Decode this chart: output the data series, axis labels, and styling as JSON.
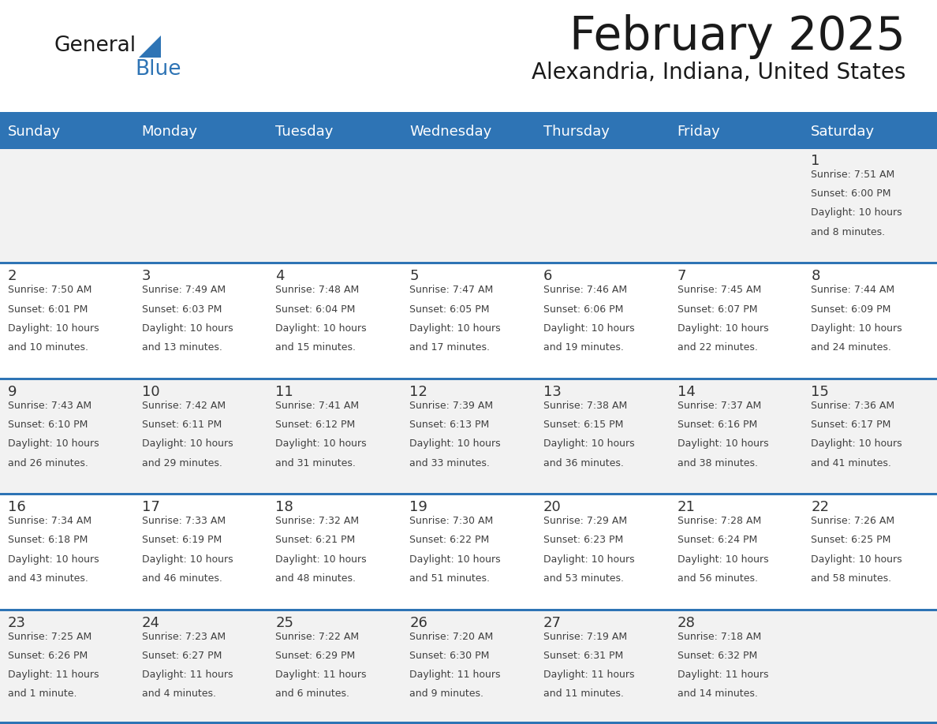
{
  "title": "February 2025",
  "subtitle": "Alexandria, Indiana, United States",
  "days_of_week": [
    "Sunday",
    "Monday",
    "Tuesday",
    "Wednesday",
    "Thursday",
    "Friday",
    "Saturday"
  ],
  "header_bg": "#2E74B5",
  "header_text_color": "#FFFFFF",
  "cell_bg_odd": "#F2F2F2",
  "cell_bg_even": "#FFFFFF",
  "separator_color": "#2E74B5",
  "text_color": "#404040",
  "day_number_color": "#333333",
  "title_color": "#1a1a1a",
  "logo_color_general": "#1a1a1a",
  "logo_color_blue": "#2E74B5",
  "calendar_data": [
    [
      null,
      null,
      null,
      null,
      null,
      null,
      {
        "day": "1",
        "sunrise": "7:51 AM",
        "sunset": "6:00 PM",
        "daylight": "10 hours and 8 minutes."
      }
    ],
    [
      {
        "day": "2",
        "sunrise": "7:50 AM",
        "sunset": "6:01 PM",
        "daylight": "10 hours and 10 minutes."
      },
      {
        "day": "3",
        "sunrise": "7:49 AM",
        "sunset": "6:03 PM",
        "daylight": "10 hours and 13 minutes."
      },
      {
        "day": "4",
        "sunrise": "7:48 AM",
        "sunset": "6:04 PM",
        "daylight": "10 hours and 15 minutes."
      },
      {
        "day": "5",
        "sunrise": "7:47 AM",
        "sunset": "6:05 PM",
        "daylight": "10 hours and 17 minutes."
      },
      {
        "day": "6",
        "sunrise": "7:46 AM",
        "sunset": "6:06 PM",
        "daylight": "10 hours and 19 minutes."
      },
      {
        "day": "7",
        "sunrise": "7:45 AM",
        "sunset": "6:07 PM",
        "daylight": "10 hours and 22 minutes."
      },
      {
        "day": "8",
        "sunrise": "7:44 AM",
        "sunset": "6:09 PM",
        "daylight": "10 hours and 24 minutes."
      }
    ],
    [
      {
        "day": "9",
        "sunrise": "7:43 AM",
        "sunset": "6:10 PM",
        "daylight": "10 hours and 26 minutes."
      },
      {
        "day": "10",
        "sunrise": "7:42 AM",
        "sunset": "6:11 PM",
        "daylight": "10 hours and 29 minutes."
      },
      {
        "day": "11",
        "sunrise": "7:41 AM",
        "sunset": "6:12 PM",
        "daylight": "10 hours and 31 minutes."
      },
      {
        "day": "12",
        "sunrise": "7:39 AM",
        "sunset": "6:13 PM",
        "daylight": "10 hours and 33 minutes."
      },
      {
        "day": "13",
        "sunrise": "7:38 AM",
        "sunset": "6:15 PM",
        "daylight": "10 hours and 36 minutes."
      },
      {
        "day": "14",
        "sunrise": "7:37 AM",
        "sunset": "6:16 PM",
        "daylight": "10 hours and 38 minutes."
      },
      {
        "day": "15",
        "sunrise": "7:36 AM",
        "sunset": "6:17 PM",
        "daylight": "10 hours and 41 minutes."
      }
    ],
    [
      {
        "day": "16",
        "sunrise": "7:34 AM",
        "sunset": "6:18 PM",
        "daylight": "10 hours and 43 minutes."
      },
      {
        "day": "17",
        "sunrise": "7:33 AM",
        "sunset": "6:19 PM",
        "daylight": "10 hours and 46 minutes."
      },
      {
        "day": "18",
        "sunrise": "7:32 AM",
        "sunset": "6:21 PM",
        "daylight": "10 hours and 48 minutes."
      },
      {
        "day": "19",
        "sunrise": "7:30 AM",
        "sunset": "6:22 PM",
        "daylight": "10 hours and 51 minutes."
      },
      {
        "day": "20",
        "sunrise": "7:29 AM",
        "sunset": "6:23 PM",
        "daylight": "10 hours and 53 minutes."
      },
      {
        "day": "21",
        "sunrise": "7:28 AM",
        "sunset": "6:24 PM",
        "daylight": "10 hours and 56 minutes."
      },
      {
        "day": "22",
        "sunrise": "7:26 AM",
        "sunset": "6:25 PM",
        "daylight": "10 hours and 58 minutes."
      }
    ],
    [
      {
        "day": "23",
        "sunrise": "7:25 AM",
        "sunset": "6:26 PM",
        "daylight": "11 hours and 1 minute."
      },
      {
        "day": "24",
        "sunrise": "7:23 AM",
        "sunset": "6:27 PM",
        "daylight": "11 hours and 4 minutes."
      },
      {
        "day": "25",
        "sunrise": "7:22 AM",
        "sunset": "6:29 PM",
        "daylight": "11 hours and 6 minutes."
      },
      {
        "day": "26",
        "sunrise": "7:20 AM",
        "sunset": "6:30 PM",
        "daylight": "11 hours and 9 minutes."
      },
      {
        "day": "27",
        "sunrise": "7:19 AM",
        "sunset": "6:31 PM",
        "daylight": "11 hours and 11 minutes."
      },
      {
        "day": "28",
        "sunrise": "7:18 AM",
        "sunset": "6:32 PM",
        "daylight": "11 hours and 14 minutes."
      },
      null
    ]
  ]
}
